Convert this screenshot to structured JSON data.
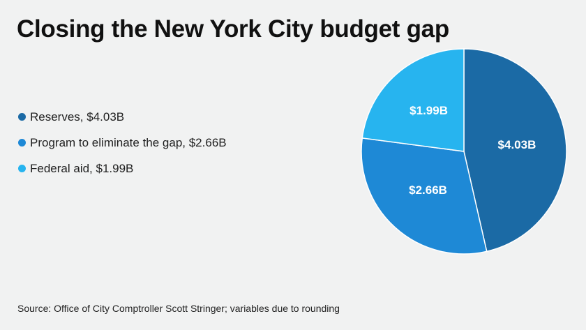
{
  "title": "Closing the New York City budget gap",
  "source": "Source: Office of City Comptroller Scott Stringer; variables due to rounding",
  "chart_data": {
    "type": "pie",
    "title": "Closing the New York City budget gap",
    "slices": [
      {
        "legend": "Reserves, $4.03B",
        "value": 4.03,
        "label": "$4.03B",
        "color": "#1b6aa5"
      },
      {
        "legend": "Program to eliminate the gap, $2.66B",
        "value": 2.66,
        "label": "$2.66B",
        "color": "#1e89d6"
      },
      {
        "legend": "Federal aid, $1.99B",
        "value": 1.99,
        "label": "$1.99B",
        "color": "#27b4ef"
      }
    ],
    "legend_position": "left",
    "start_angle_deg": 0,
    "direction": "clockwise"
  }
}
